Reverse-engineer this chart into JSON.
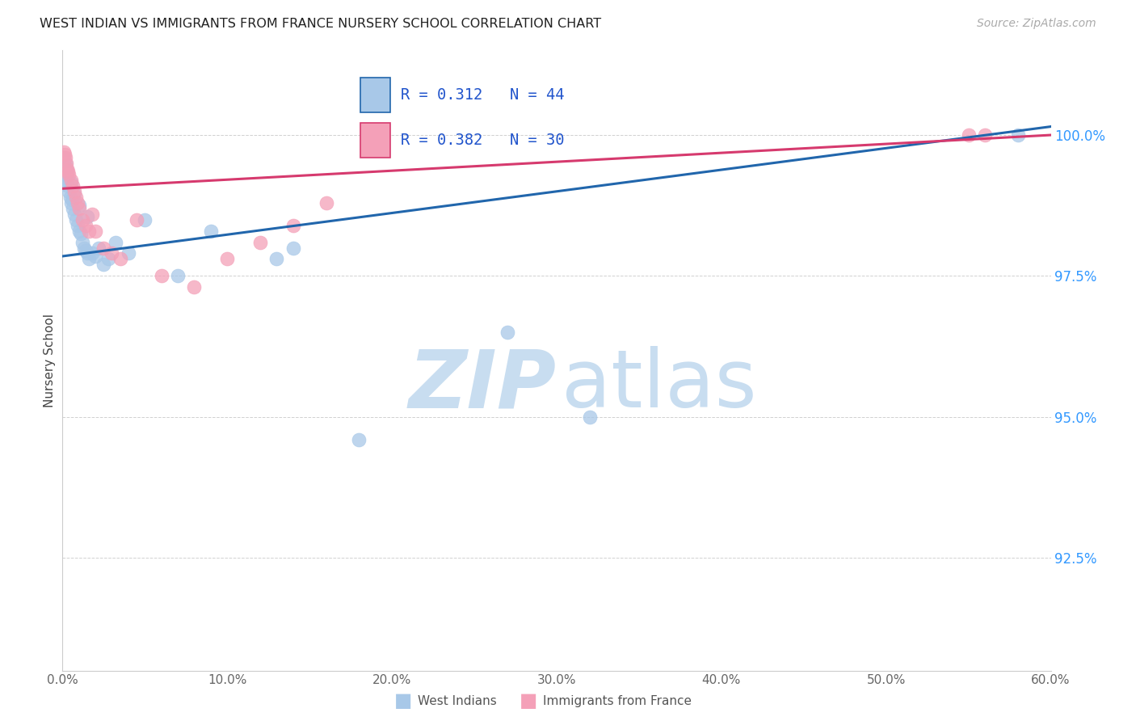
{
  "title": "WEST INDIAN VS IMMIGRANTS FROM FRANCE NURSERY SCHOOL CORRELATION CHART",
  "source": "Source: ZipAtlas.com",
  "ylabel": "Nursery School",
  "xlim": [
    0.0,
    60.0
  ],
  "ylim": [
    90.5,
    101.5
  ],
  "yticks": [
    92.5,
    95.0,
    97.5,
    100.0
  ],
  "xticks": [
    0.0,
    10.0,
    20.0,
    30.0,
    40.0,
    50.0,
    60.0
  ],
  "r1": 0.312,
  "n1": 44,
  "r2": 0.382,
  "n2": 30,
  "blue_scatter_color": "#a8c8e8",
  "pink_scatter_color": "#f4a0b8",
  "blue_line_color": "#2166ac",
  "pink_line_color": "#d63a6e",
  "background_color": "#ffffff",
  "grid_color": "#cccccc",
  "west_indian_x": [
    0.1,
    0.15,
    0.2,
    0.25,
    0.3,
    0.35,
    0.4,
    0.45,
    0.5,
    0.55,
    0.6,
    0.7,
    0.8,
    0.9,
    1.0,
    1.1,
    1.2,
    1.3,
    1.4,
    1.5,
    1.6,
    1.8,
    2.0,
    2.2,
    2.5,
    2.8,
    3.2,
    4.0,
    5.0,
    7.0,
    9.0,
    13.0,
    14.0,
    18.0,
    27.0,
    32.0,
    58.0,
    0.1,
    0.2,
    0.3,
    0.5,
    0.7,
    1.0,
    1.5
  ],
  "west_indian_y": [
    99.5,
    99.4,
    99.3,
    99.2,
    99.3,
    99.1,
    99.0,
    98.9,
    98.8,
    98.85,
    98.7,
    98.6,
    98.5,
    98.4,
    98.3,
    98.25,
    98.1,
    98.0,
    97.95,
    97.9,
    97.8,
    97.9,
    97.85,
    98.0,
    97.7,
    97.8,
    98.1,
    97.9,
    98.5,
    97.5,
    98.3,
    97.8,
    98.0,
    94.6,
    96.5,
    95.0,
    100.0,
    99.6,
    99.5,
    99.35,
    99.15,
    98.95,
    98.75,
    98.55
  ],
  "france_x": [
    0.1,
    0.15,
    0.2,
    0.25,
    0.3,
    0.35,
    0.4,
    0.5,
    0.6,
    0.7,
    0.8,
    0.9,
    1.0,
    1.2,
    1.4,
    1.6,
    1.8,
    2.0,
    2.5,
    3.0,
    3.5,
    4.5,
    6.0,
    8.0,
    10.0,
    12.0,
    14.0,
    16.0,
    55.0,
    56.0
  ],
  "france_y": [
    99.7,
    99.65,
    99.6,
    99.5,
    99.4,
    99.35,
    99.3,
    99.2,
    99.1,
    99.0,
    98.9,
    98.8,
    98.7,
    98.5,
    98.4,
    98.3,
    98.6,
    98.3,
    98.0,
    97.9,
    97.8,
    98.5,
    97.5,
    97.3,
    97.8,
    98.1,
    98.4,
    98.8,
    100.0,
    100.0
  ],
  "watermark_zip_color": "#c8ddf0",
  "watermark_atlas_color": "#c8ddf0"
}
